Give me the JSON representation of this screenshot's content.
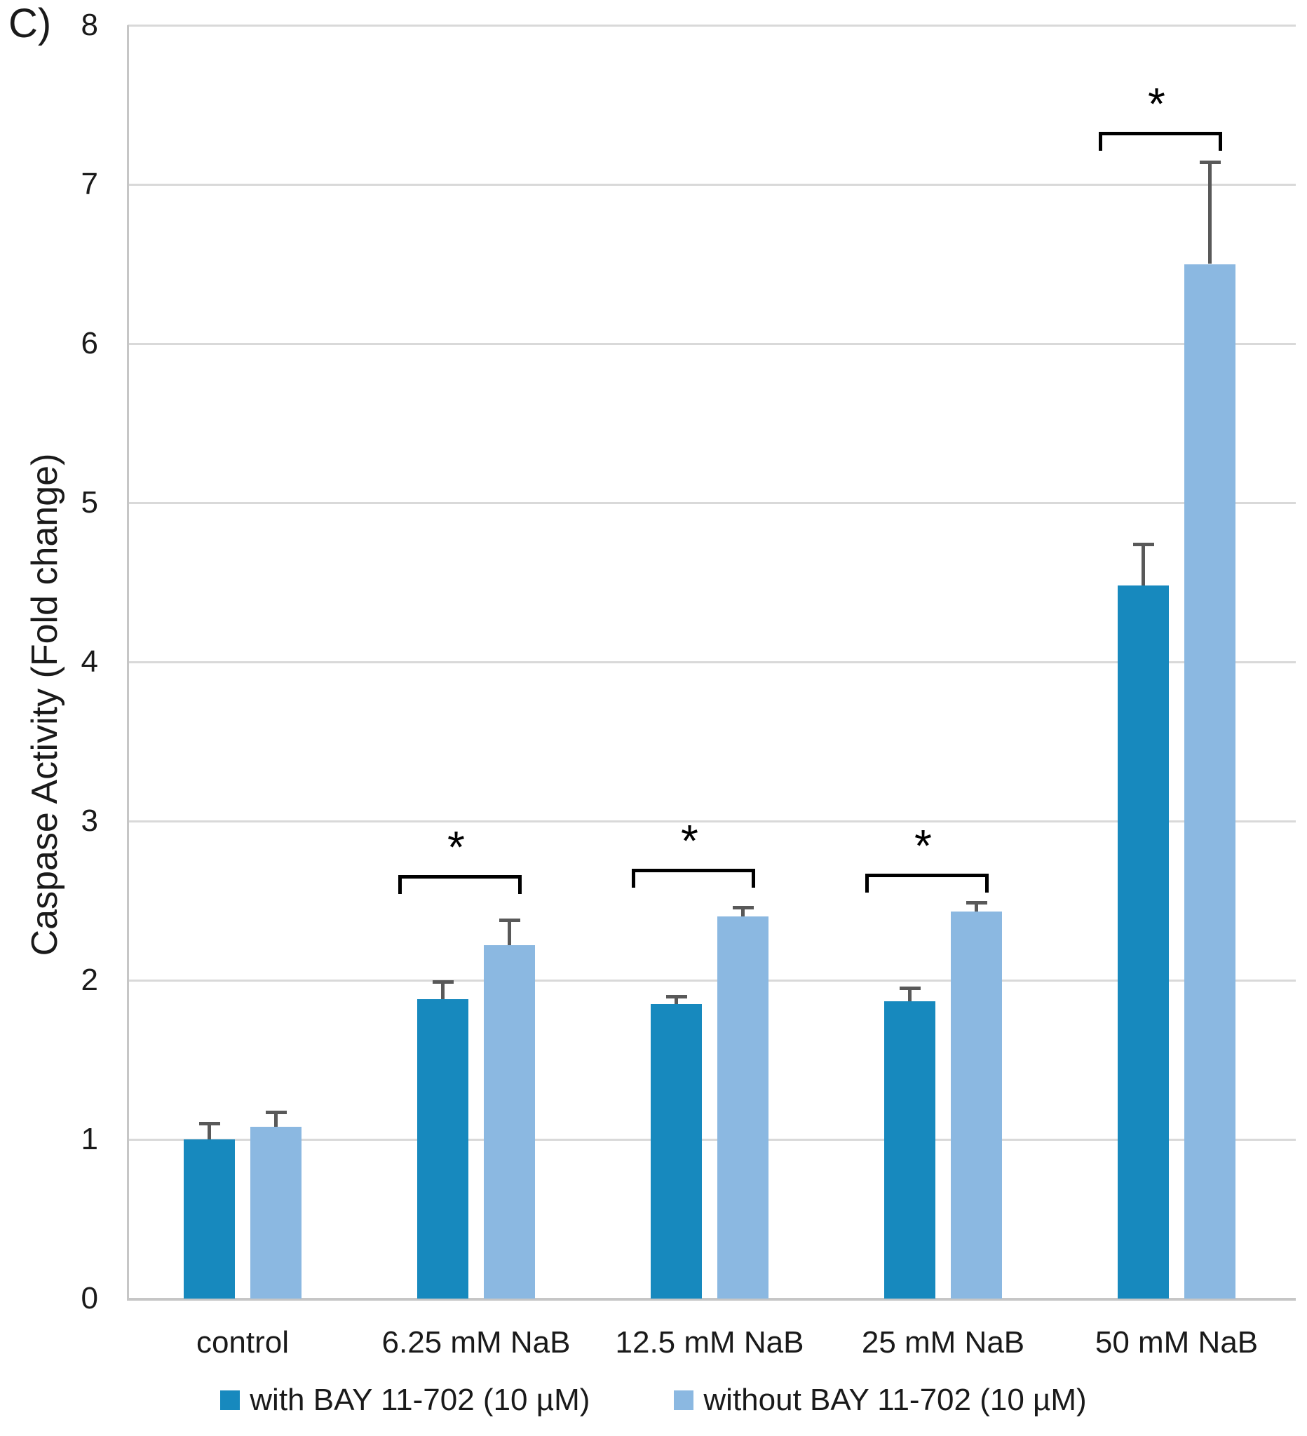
{
  "panel_label": "C)",
  "chart_data": {
    "type": "bar",
    "title": "",
    "xlabel": "",
    "ylabel": "Caspase Activity (Fold change)",
    "ylim": [
      0,
      8
    ],
    "yticks": [
      0,
      1,
      2,
      3,
      4,
      5,
      6,
      7,
      8
    ],
    "grid": true,
    "legend_position": "bottom",
    "categories": [
      "control",
      "6.25 mM NaB",
      "12.5 mM NaB",
      "25 mM NaB",
      "50 mM NaB"
    ],
    "series": [
      {
        "name": "with BAY 11-702 (10 µM)",
        "color": "#1789BE",
        "values": [
          1.0,
          1.88,
          1.85,
          1.87,
          4.48
        ],
        "errors": [
          0.1,
          0.11,
          0.05,
          0.08,
          0.26
        ]
      },
      {
        "name": "without BAY 11-702 (10 µM)",
        "color": "#8BB8E1",
        "values": [
          1.08,
          2.22,
          2.4,
          2.43,
          6.5
        ],
        "errors": [
          0.09,
          0.16,
          0.06,
          0.06,
          0.64
        ]
      }
    ],
    "significance": [
      {
        "category_index": 1,
        "label": "*",
        "bracket_y": 2.66
      },
      {
        "category_index": 2,
        "label": "*",
        "bracket_y": 2.7
      },
      {
        "category_index": 3,
        "label": "*",
        "bracket_y": 2.67
      },
      {
        "category_index": 4,
        "label": "*",
        "bracket_y": 7.33
      }
    ],
    "error_bar_color": "#595959",
    "gridline_color": "#d9d9d9"
  }
}
